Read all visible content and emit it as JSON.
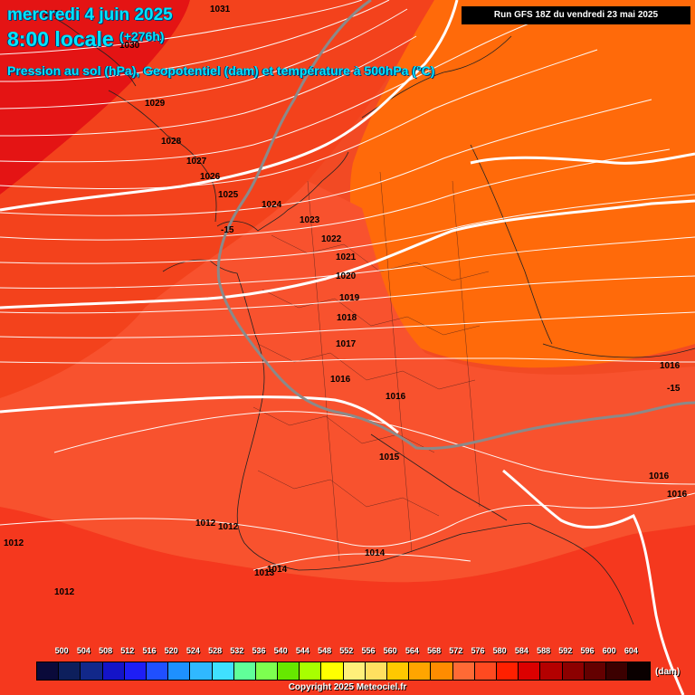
{
  "title": {
    "date_line": "mercredi 4 juin 2025",
    "time_line": "8:00 locale",
    "offset": "(+276h)",
    "subtitle": "Pression au sol (hPa), Geopotentiel (dam) et température à 500hPa (°C)"
  },
  "run_info": "Run GFS 18Z du vendredi 23 mai 2025",
  "pressure_labels": [
    {
      "text": "1031"
    },
    {
      "text": "1031"
    },
    {
      "text": "1030"
    },
    {
      "text": "1029"
    },
    {
      "text": "1028"
    },
    {
      "text": "1027"
    },
    {
      "text": "1026"
    },
    {
      "text": "1025"
    },
    {
      "text": "1024"
    },
    {
      "text": "1023"
    },
    {
      "text": "1022"
    },
    {
      "text": "1021"
    },
    {
      "text": "1020"
    },
    {
      "text": "1019"
    },
    {
      "text": "1018"
    },
    {
      "text": "1017"
    },
    {
      "text": "1016"
    },
    {
      "text": "1016"
    },
    {
      "text": "1016"
    },
    {
      "text": "1016"
    },
    {
      "text": "1016"
    },
    {
      "text": "1015"
    },
    {
      "text": "1014"
    },
    {
      "text": "1014"
    },
    {
      "text": "1013"
    },
    {
      "text": "1012"
    },
    {
      "text": "1012"
    },
    {
      "text": "1012"
    },
    {
      "text": "1012"
    }
  ],
  "temperature_labels": [
    {
      "text": "-15"
    },
    {
      "text": "-15"
    }
  ],
  "legend": {
    "values": [
      "500",
      "504",
      "508",
      "512",
      "516",
      "520",
      "524",
      "528",
      "532",
      "536",
      "540",
      "544",
      "548",
      "552",
      "556",
      "560",
      "564",
      "568",
      "572",
      "576",
      "580",
      "584",
      "588",
      "592",
      "596",
      "600",
      "604"
    ],
    "colors": [
      "#0a0a3a",
      "#0d1f5c",
      "#12288a",
      "#1414c8",
      "#1e1ef5",
      "#2050ff",
      "#1e90ff",
      "#30b8ff",
      "#40e0ff",
      "#60ff99",
      "#7dff50",
      "#66e800",
      "#a8ff00",
      "#ffff00",
      "#fff07a",
      "#ffe060",
      "#ffc800",
      "#ffa500",
      "#ff8c00",
      "#ff6a35",
      "#ff4a20",
      "#ff2000",
      "#dc0000",
      "#b40000",
      "#8c0000",
      "#640000",
      "#3c0000",
      "#0a0000"
    ],
    "unit": "(dam)"
  },
  "copyright": "Copyright 2025 Meteociel.fr"
}
